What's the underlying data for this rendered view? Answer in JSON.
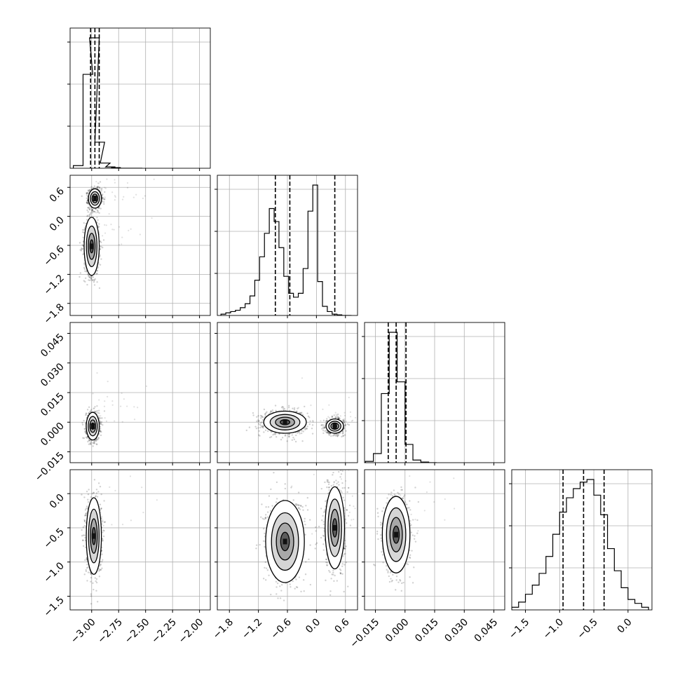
{
  "chart_data": {
    "type": "corner",
    "grid": true,
    "quantiles_marked": [
      0.16,
      0.5,
      0.84
    ],
    "params": [
      {
        "range": [
          -3.2,
          -1.9
        ],
        "ticks": [
          -3.0,
          -2.75,
          -2.5,
          -2.25,
          -2.0
        ],
        "tick_labels": [
          "−3.00",
          "−2.75",
          "−2.50",
          "−2.25",
          "−2.00"
        ]
      },
      {
        "range": [
          -2.05,
          0.85
        ],
        "ticks": [
          -1.8,
          -1.2,
          -0.6,
          0.0,
          0.6
        ],
        "tick_labels": [
          "−1.8",
          "−1.2",
          "−0.6",
          "0.0",
          "0.6"
        ]
      },
      {
        "range": [
          -0.0205,
          0.0505
        ],
        "ticks": [
          -0.015,
          0.0,
          0.015,
          0.03,
          0.045
        ],
        "tick_labels": [
          "−0.015",
          "0.000",
          "0.015",
          "0.030",
          "0.045"
        ]
      },
      {
        "range": [
          -1.7,
          0.35
        ],
        "ticks": [
          -1.5,
          -1.0,
          -0.5,
          0.0
        ],
        "tick_labels": [
          "−1.5",
          "−1.0",
          "−0.5",
          "0.0"
        ]
      }
    ],
    "histograms": [
      {
        "param": 0,
        "x": [
          -3.125,
          -3.035,
          -2.975,
          -2.925,
          -2.875,
          -2.825,
          -2.775,
          -2.725,
          -2.675,
          -2.625,
          -2.575
        ],
        "counts": [
          0.02,
          0.72,
          1.0,
          0.2,
          0.04,
          0.01,
          0.005,
          0,
          0,
          0,
          0
        ],
        "quantiles": [
          -3.01,
          -2.97,
          -2.93
        ]
      },
      {
        "param": 1,
        "x": [
          -1.925,
          -1.825,
          -1.725,
          -1.625,
          -1.525,
          -1.425,
          -1.325,
          -1.225,
          -1.125,
          -1.025,
          -0.925,
          -0.825,
          -0.725,
          -0.625,
          -0.525,
          -0.425,
          -0.325,
          -0.225,
          -0.125,
          -0.025,
          0.075,
          0.175,
          0.275,
          0.375,
          0.475,
          0.575,
          0.675
        ],
        "counts": [
          0.01,
          0.02,
          0.03,
          0.04,
          0.06,
          0.09,
          0.15,
          0.27,
          0.45,
          0.63,
          0.82,
          0.72,
          0.52,
          0.3,
          0.17,
          0.14,
          0.17,
          0.36,
          0.8,
          1.0,
          0.26,
          0.07,
          0.03,
          0.01,
          0.005,
          0,
          0
        ],
        "quantiles": [
          -0.85,
          -0.55,
          0.38
        ]
      },
      {
        "param": 2,
        "x": [
          -0.018,
          -0.014,
          -0.01,
          -0.006,
          -0.002,
          0.002,
          0.006,
          0.01,
          0.014
        ],
        "counts": [
          0.01,
          0.07,
          0.53,
          1.0,
          0.62,
          0.14,
          0.02,
          0.005,
          0
        ],
        "quantiles": [
          -0.0085,
          -0.0045,
          0.0005
        ]
      },
      {
        "param": 3,
        "x": [
          -1.65,
          -1.55,
          -1.45,
          -1.35,
          -1.25,
          -1.15,
          -1.05,
          -0.95,
          -0.85,
          -0.75,
          -0.65,
          -0.55,
          -0.45,
          -0.35,
          -0.25,
          -0.15,
          -0.05,
          0.05,
          0.15,
          0.25
        ],
        "counts": [
          0.02,
          0.06,
          0.12,
          0.19,
          0.28,
          0.41,
          0.58,
          0.75,
          0.86,
          0.93,
          0.98,
          1.0,
          0.88,
          0.73,
          0.47,
          0.3,
          0.17,
          0.08,
          0.05,
          0.02
        ],
        "quantiles": [
          -0.95,
          -0.65,
          -0.35
        ]
      }
    ],
    "scatter_panels": [
      {
        "x_param": 0,
        "y_param": 1,
        "clusters": [
          {
            "cx": -2.97,
            "cy": 0.37,
            "sx": 0.03,
            "sy": 0.1
          },
          {
            "cx": -3.0,
            "cy": -0.62,
            "sx": 0.035,
            "sy": 0.3
          }
        ]
      },
      {
        "x_param": 0,
        "y_param": 2,
        "clusters": [
          {
            "cx": -2.99,
            "cy": -0.002,
            "sx": 0.03,
            "sy": 0.0035
          }
        ]
      },
      {
        "x_param": 1,
        "y_param": 2,
        "clusters": [
          {
            "cx": -0.65,
            "cy": 0.0,
            "sx": 0.22,
            "sy": 0.0028
          },
          {
            "cx": 0.38,
            "cy": -0.002,
            "sx": 0.09,
            "sy": 0.0018
          }
        ]
      },
      {
        "x_param": 0,
        "y_param": 3,
        "clusters": [
          {
            "cx": -2.98,
            "cy": -0.62,
            "sx": 0.035,
            "sy": 0.28
          }
        ]
      },
      {
        "x_param": 1,
        "y_param": 3,
        "clusters": [
          {
            "cx": -0.65,
            "cy": -0.7,
            "sx": 0.2,
            "sy": 0.3
          },
          {
            "cx": 0.38,
            "cy": -0.5,
            "sx": 0.1,
            "sy": 0.3
          }
        ]
      },
      {
        "x_param": 2,
        "y_param": 3,
        "clusters": [
          {
            "cx": -0.0045,
            "cy": -0.6,
            "sx": 0.0035,
            "sy": 0.28
          }
        ]
      }
    ]
  }
}
